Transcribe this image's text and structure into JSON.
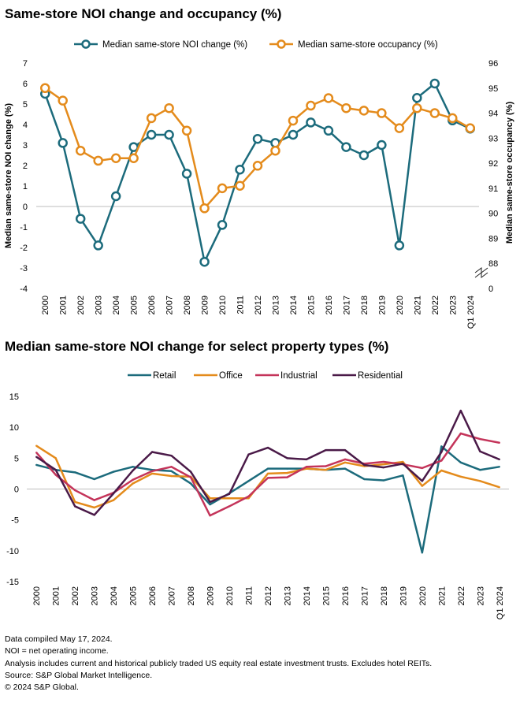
{
  "chart_data": [
    {
      "type": "line",
      "title": "Same-store NOI change and occupancy (%)",
      "categories": [
        "2000",
        "2001",
        "2002",
        "2003",
        "2004",
        "2005",
        "2006",
        "2007",
        "2008",
        "2009",
        "2010",
        "2011",
        "2012",
        "2013",
        "2014",
        "2015",
        "2016",
        "2017",
        "2018",
        "2019",
        "2020",
        "2021",
        "2022",
        "2023",
        "Q1 2024"
      ],
      "ylabel": "Median same-store NOI change (%)",
      "ylim": [
        -4,
        7
      ],
      "yticks": [
        "7",
        "6",
        "5",
        "4",
        "3",
        "2",
        "1",
        "0",
        "-1",
        "-2",
        "-3",
        "-4"
      ],
      "y2label": "Median same-store occupancy (%)",
      "y2lim": [
        87,
        96
      ],
      "y2ticks": [
        "96",
        "95",
        "94",
        "93",
        "92",
        "91",
        "90",
        "89",
        "88",
        "0"
      ],
      "y2_axis_break": true,
      "legend_position": "top",
      "series": [
        {
          "name": "Median same-store NOI change (%)",
          "axis": "left",
          "color": "#1c6b7c",
          "values": [
            5.5,
            3.1,
            -0.6,
            -1.9,
            0.5,
            2.9,
            3.5,
            3.5,
            1.6,
            -2.7,
            -0.9,
            1.8,
            3.3,
            3.1,
            3.5,
            4.1,
            3.7,
            2.9,
            2.5,
            3.0,
            -1.9,
            5.3,
            6.0,
            4.2,
            3.8
          ]
        },
        {
          "name": "Median same-store occupancy (%)",
          "axis": "right",
          "color": "#e48b1c",
          "values": [
            95.0,
            94.5,
            92.5,
            92.1,
            92.2,
            92.2,
            93.8,
            94.2,
            93.3,
            90.2,
            91.0,
            91.1,
            91.9,
            92.5,
            93.7,
            94.3,
            94.6,
            94.2,
            94.1,
            94.0,
            93.4,
            94.2,
            94.0,
            93.8,
            93.4
          ]
        }
      ]
    },
    {
      "type": "line",
      "title": "Median same-store NOI change for select property types (%)",
      "categories": [
        "2000",
        "2001",
        "2002",
        "2003",
        "2004",
        "2005",
        "2006",
        "2007",
        "2008",
        "2009",
        "2010",
        "2011",
        "2012",
        "2013",
        "2014",
        "2015",
        "2016",
        "2017",
        "2018",
        "2019",
        "2020",
        "2021",
        "2022",
        "2023",
        "Q1 2024"
      ],
      "ylim": [
        -15,
        15
      ],
      "yticks": [
        "15",
        "10",
        "5",
        "0",
        "-5",
        "-10",
        "-15"
      ],
      "legend_position": "top",
      "series": [
        {
          "name": "Retail",
          "color": "#1c6b7c",
          "values": [
            3.9,
            3.1,
            2.7,
            1.6,
            2.8,
            3.6,
            3.1,
            2.9,
            0.9,
            -2.5,
            -0.7,
            1.3,
            3.3,
            3.3,
            3.3,
            3.1,
            3.3,
            1.6,
            1.4,
            2.2,
            -10.3,
            6.9,
            4.3,
            3.1,
            3.6
          ]
        },
        {
          "name": "Office",
          "color": "#e48b1c",
          "values": [
            7.0,
            5.0,
            -2.1,
            -3.0,
            -1.8,
            0.9,
            2.5,
            2.1,
            2.0,
            -1.5,
            -1.5,
            -1.5,
            2.5,
            2.6,
            3.3,
            3.1,
            4.3,
            3.7,
            4.0,
            4.4,
            0.5,
            3.0,
            2.0,
            1.3,
            0.3
          ]
        },
        {
          "name": "Industrial",
          "color": "#c4345a",
          "values": [
            5.9,
            2.3,
            -0.2,
            -1.8,
            -0.6,
            1.5,
            2.9,
            3.6,
            1.9,
            -4.3,
            -2.8,
            -1.2,
            1.8,
            1.9,
            3.6,
            3.7,
            4.8,
            4.1,
            4.4,
            4.0,
            3.4,
            4.6,
            9.0,
            8.1,
            7.5
          ]
        },
        {
          "name": "Residential",
          "color": "#4a1a48",
          "values": [
            5.2,
            3.1,
            -2.8,
            -4.2,
            -0.7,
            3.0,
            6.0,
            5.4,
            2.8,
            -2.1,
            -0.8,
            5.6,
            6.7,
            5.0,
            4.8,
            6.3,
            6.3,
            3.9,
            3.5,
            4.1,
            1.3,
            6.0,
            12.7,
            6.1,
            4.8
          ]
        }
      ]
    }
  ],
  "notes": [
    "Data compiled May 17, 2024.",
    "NOI = net operating income.",
    "Analysis includes current and historical publicly traded US equity real estate investment trusts. Excludes hotel REITs.",
    "Source: S&P Global Market Intelligence.",
    "© 2024 S&P Global."
  ]
}
